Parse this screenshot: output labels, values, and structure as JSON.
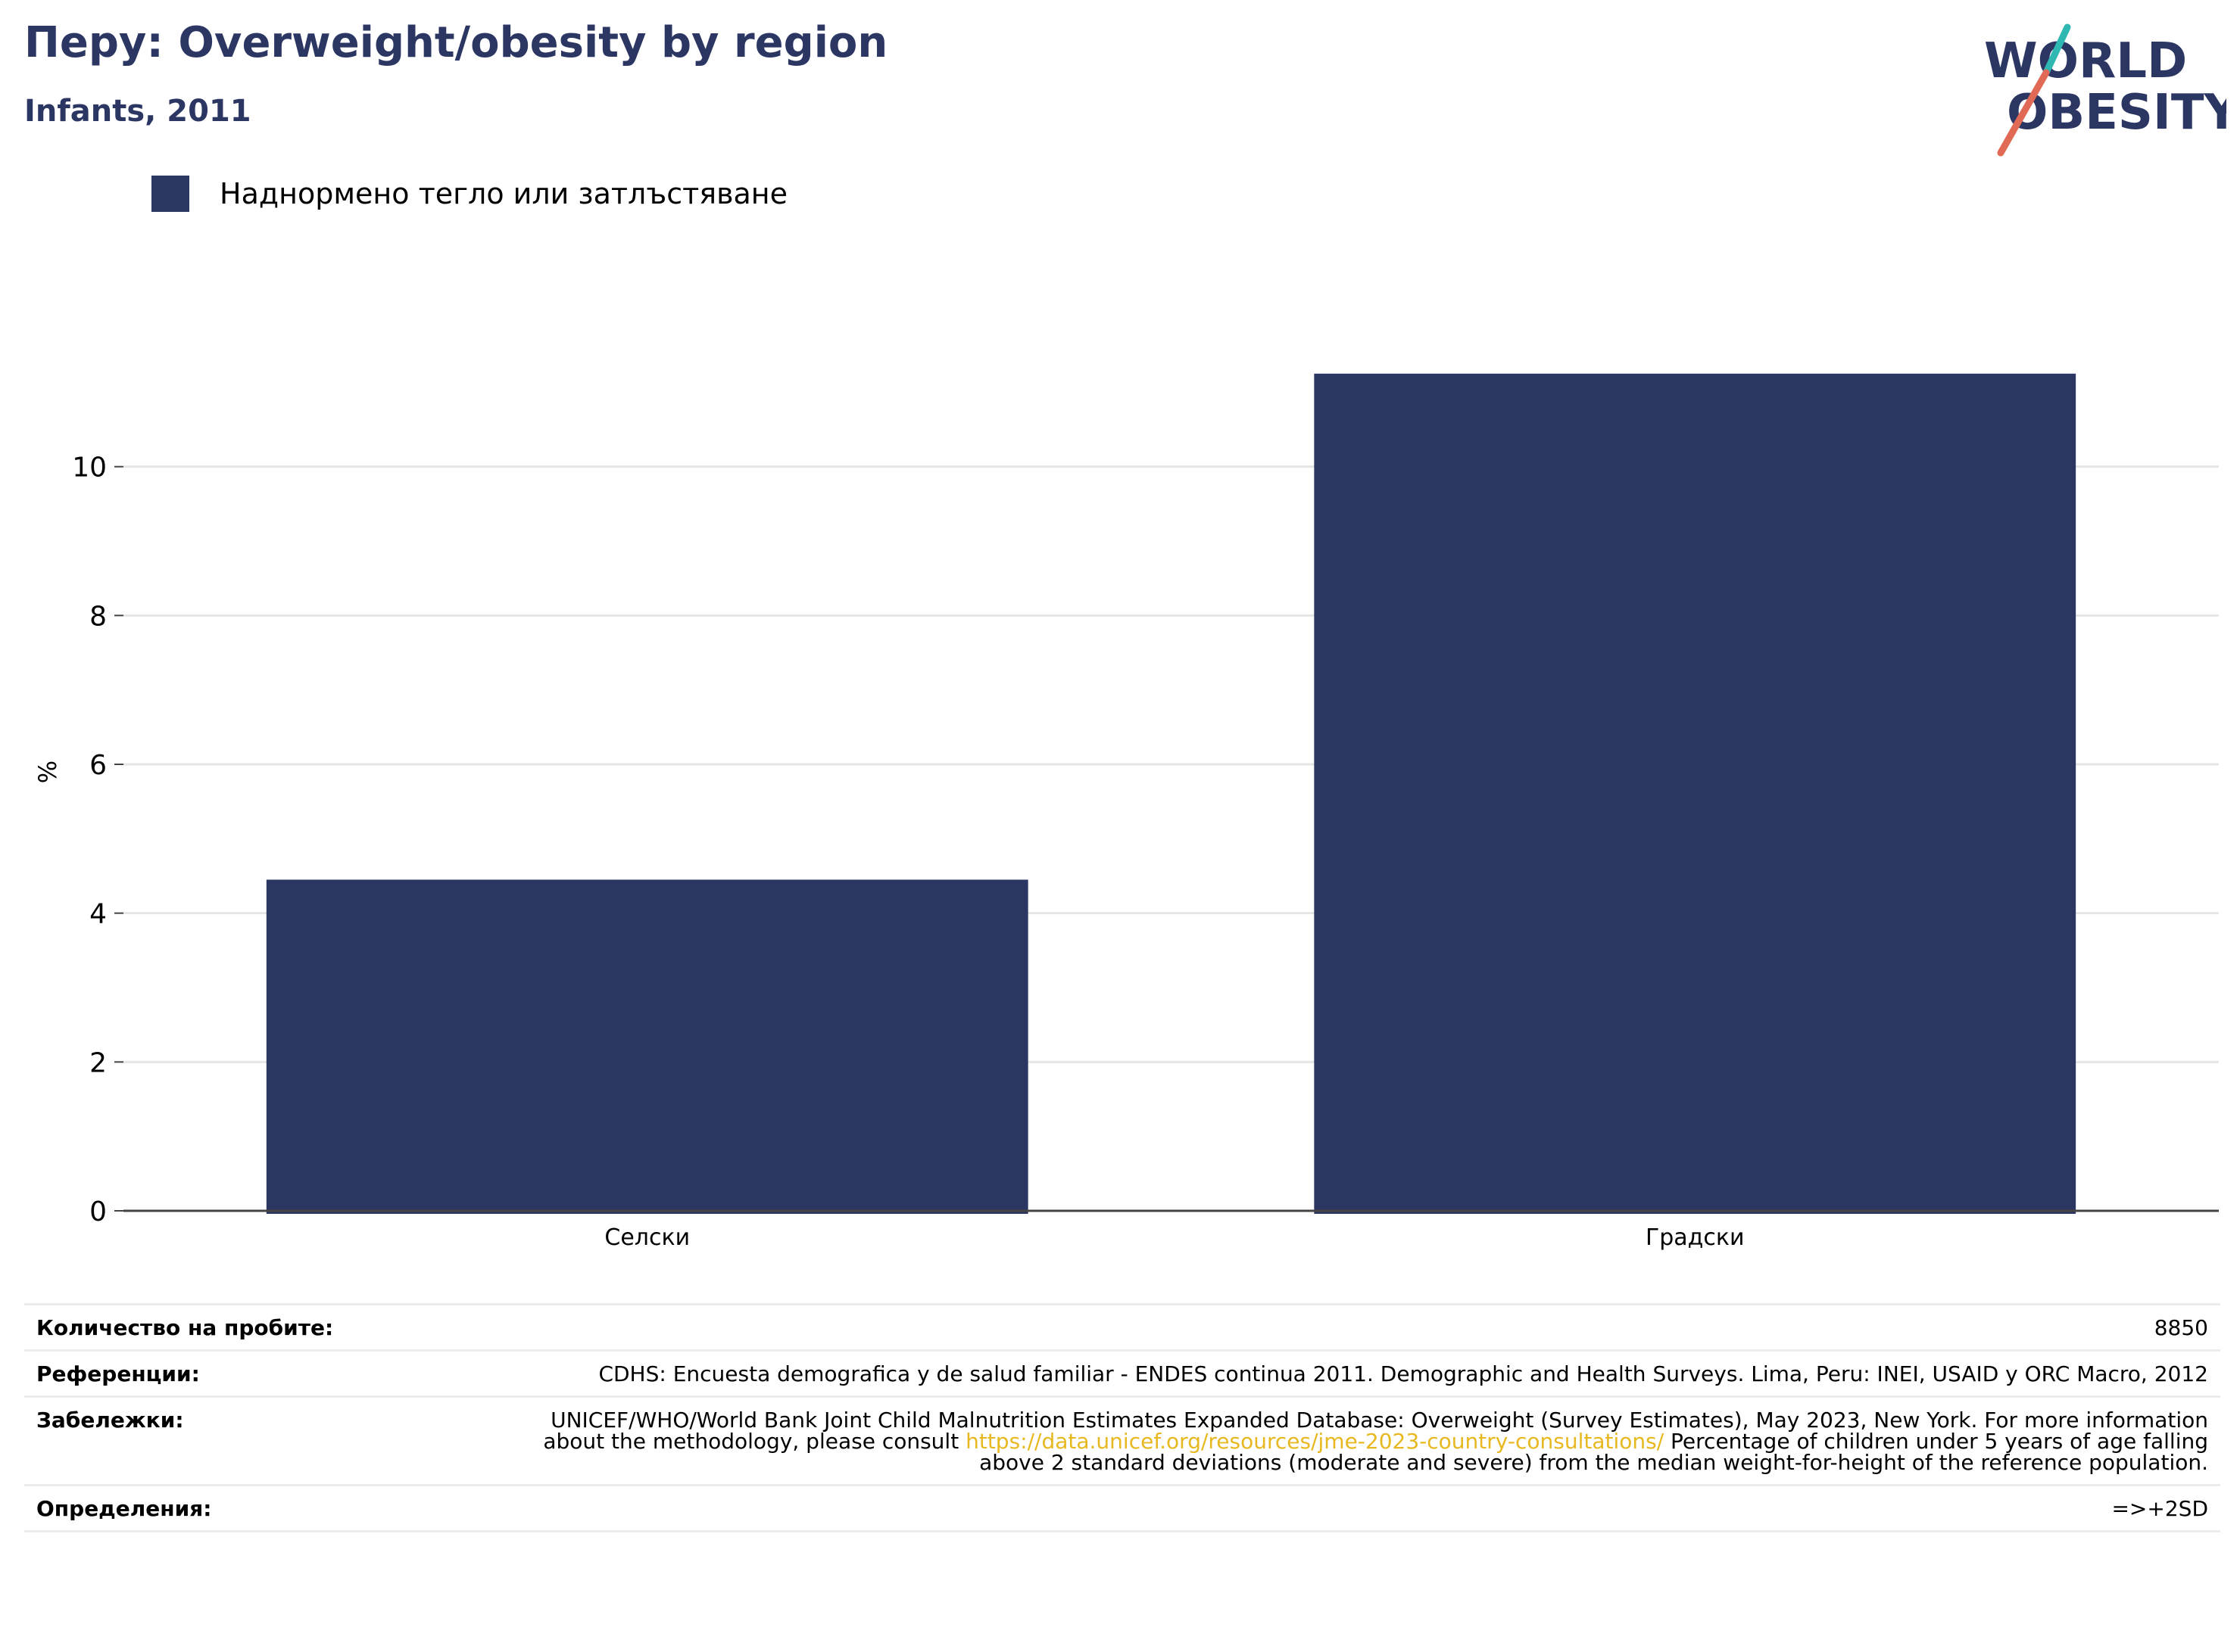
{
  "title": "Перу: Overweight/obesity by region",
  "subtitle": "Infants, 2011",
  "logo": {
    "line1": "WORLD",
    "line2": "OBESITY"
  },
  "colors": {
    "bar": "#2b3663",
    "title": "#2b3663",
    "grid": "#e6e6e6",
    "axis": "#444444",
    "link": "#e8b820",
    "logo_slash_teal": "#2fb8b2",
    "logo_slash_red": "#e06a55"
  },
  "legend": {
    "label": "Наднормено тегло или затлъстяване"
  },
  "chart_data": {
    "type": "bar",
    "categories": [
      "Селски",
      "Градски"
    ],
    "series": [
      {
        "name": "Наднормено тегло или затлъстяване",
        "values": [
          4.45,
          11.25
        ]
      }
    ],
    "ylabel": "%",
    "ylim": [
      0,
      12
    ],
    "yticks": [
      0,
      2,
      4,
      6,
      8,
      10
    ],
    "grid": true,
    "legend_position": "top-left"
  },
  "info": {
    "sample_label": "Количество на пробите:",
    "sample_value": "8850",
    "references_label": "Референции:",
    "references_value": "CDHS: Encuesta demografica y de salud familiar - ENDES continua 2011. Demographic and Health Surveys. Lima, Peru: INEI, USAID y ORC Macro, 2012",
    "notes_label": "Забележки:",
    "notes_before": "UNICEF/WHO/World Bank Joint Child Malnutrition Estimates Expanded Database: Overweight (Survey Estimates), May 2023, New York. For more information about the methodology, please consult",
    "notes_link": "https://data.unicef.org/resources/jme-2023-country-consultations/",
    "notes_after": "Percentage of children under 5 years of age falling above 2 standard deviations (moderate and severe) from the median weight-for-height of the reference population.",
    "definitions_label": "Определения:",
    "definitions_value": "=>+2SD"
  }
}
